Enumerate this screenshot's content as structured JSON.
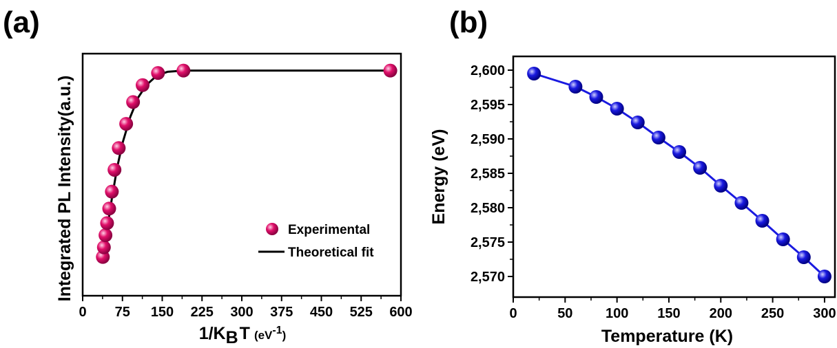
{
  "panels": {
    "a_label": "(a)",
    "b_label": "(b)"
  },
  "colors": {
    "experimental": "#e0106a",
    "fit": "#000000",
    "energy": "#1a1ae0"
  },
  "chart_data": [
    {
      "type": "scatter",
      "xlabel_main": "1/K",
      "xlabel_sub": "B",
      "xlabel_tail": "T",
      "xlabel_unit_open": "(eV",
      "xlabel_unit_sup": "-1",
      "xlabel_unit_close": ")",
      "ylabel": "Integrated PL Intensity(a.u.)",
      "xlim": [
        0,
        600
      ],
      "xticks": [
        0,
        75,
        150,
        225,
        300,
        375,
        450,
        525,
        600
      ],
      "y_tick_labels": false,
      "ylim": [
        0,
        1
      ],
      "legend_position": "lower-right",
      "series": [
        {
          "name": "Experimental",
          "style": "markers",
          "x": [
            38,
            40,
            43,
            46,
            50,
            55,
            60,
            68,
            82,
            95,
            113,
            142,
            190,
            580
          ],
          "y": [
            0.16,
            0.2,
            0.25,
            0.3,
            0.36,
            0.43,
            0.52,
            0.61,
            0.71,
            0.8,
            0.87,
            0.92,
            0.93,
            0.93
          ]
        },
        {
          "name": "Theoretical fit",
          "style": "line",
          "x": [
            38,
            45,
            55,
            65,
            75,
            90,
            105,
            120,
            140,
            160,
            190,
            250,
            350,
            580
          ],
          "y": [
            0.15,
            0.26,
            0.4,
            0.53,
            0.63,
            0.74,
            0.82,
            0.87,
            0.91,
            0.925,
            0.93,
            0.93,
            0.93,
            0.93
          ]
        }
      ]
    },
    {
      "type": "line",
      "xlabel": "Temperature (K)",
      "ylabel": "Energy (eV)",
      "xlim": [
        0,
        310
      ],
      "ylim": [
        2.567,
        2.602
      ],
      "xticks": [
        0,
        50,
        100,
        150,
        200,
        250,
        300
      ],
      "yticks": [
        2.57,
        2.575,
        2.58,
        2.585,
        2.59,
        2.595,
        2.6
      ],
      "ytick_labels": [
        "2,570",
        "2,575",
        "2,580",
        "2,585",
        "2,590",
        "2,595",
        "2,600"
      ],
      "series": [
        {
          "style": "line+markers",
          "x": [
            20,
            60,
            80,
            100,
            120,
            140,
            160,
            180,
            200,
            220,
            240,
            260,
            280,
            300
          ],
          "y": [
            2.5995,
            2.5976,
            2.5961,
            2.5944,
            2.5924,
            2.5902,
            2.5881,
            2.5858,
            2.5832,
            2.5807,
            2.5781,
            2.5754,
            2.5728,
            2.57
          ]
        }
      ]
    }
  ]
}
